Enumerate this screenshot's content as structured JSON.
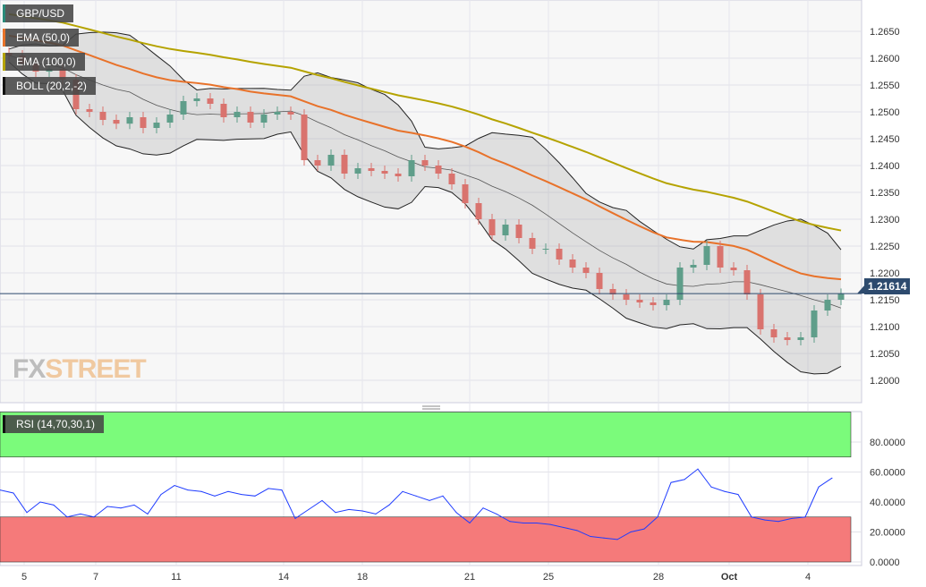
{
  "symbol": "GBP/USD",
  "indicators": [
    {
      "label": "EMA (50,0)",
      "color": "#e8722a"
    },
    {
      "label": "EMA (100,0)",
      "color": "#b5a300"
    },
    {
      "label": "BOLL (20,2,-2)",
      "color": "#111111"
    }
  ],
  "rsi_label": "RSI (14,70,30,1)",
  "watermark": "FXSTREET",
  "current_price": "1.21614",
  "colors": {
    "up": "#5f9e8a",
    "down": "#d9736e",
    "rsi": "#1f3cff",
    "overbought": "#7bfb7b",
    "oversold": "#f57a7a",
    "marker": "#2d4a6e"
  },
  "chart_data": [
    {
      "type": "candlestick",
      "title": "GBP/USD",
      "ylim": [
        1.1975,
        1.2708
      ],
      "y_ticks": [
        "1.2650",
        "1.2600",
        "1.2550",
        "1.2500",
        "1.2450",
        "1.2400",
        "1.2350",
        "1.2300",
        "1.2250",
        "1.2200",
        "1.2150",
        "1.2100",
        "1.2050",
        "1.2000"
      ],
      "x_ticks": [
        "5",
        "7",
        "11",
        "14",
        "18",
        "21",
        "25",
        "28",
        "Oct",
        "4"
      ],
      "closes": [
        1.2605,
        1.259,
        1.2575,
        1.258,
        1.256,
        1.2505,
        1.25,
        1.2485,
        1.2478,
        1.249,
        1.247,
        1.248,
        1.2495,
        1.252,
        1.2525,
        1.2515,
        1.249,
        1.25,
        1.248,
        1.2495,
        1.25,
        1.2495,
        1.241,
        1.24,
        1.242,
        1.2385,
        1.2395,
        1.239,
        1.2385,
        1.238,
        1.241,
        1.24,
        1.2385,
        1.2365,
        1.233,
        1.23,
        1.227,
        1.229,
        1.2265,
        1.2245,
        1.2245,
        1.2225,
        1.221,
        1.22,
        1.217,
        1.216,
        1.215,
        1.2145,
        1.214,
        1.215,
        1.221,
        1.2215,
        1.225,
        1.221,
        1.2205,
        1.216,
        1.2095,
        1.208,
        1.2075,
        1.208,
        1.213,
        1.215,
        1.2161
      ],
      "ema50_start": 1.2645,
      "ema100_start": 1.2685
    },
    {
      "type": "line",
      "title": "RSI (14,70,30,1)",
      "ylim": [
        0,
        100
      ],
      "y_ticks": [
        "80.0000",
        "60.0000",
        "40.0000",
        "20.0000",
        "0.0000"
      ],
      "levels": [
        70,
        30
      ],
      "values": [
        48,
        46,
        33,
        40,
        38,
        30,
        32,
        30,
        37,
        36,
        38,
        32,
        45,
        51,
        48,
        47,
        44,
        47,
        45,
        44,
        49,
        48,
        29,
        35,
        41,
        33,
        35,
        34,
        32,
        38,
        47,
        44,
        41,
        44,
        33,
        26,
        36,
        32,
        27,
        26,
        26,
        25,
        23,
        21,
        17,
        16,
        15,
        20,
        22,
        30,
        53,
        55,
        62,
        50,
        47,
        45,
        30,
        28,
        27,
        29,
        30,
        50,
        56
      ]
    }
  ]
}
